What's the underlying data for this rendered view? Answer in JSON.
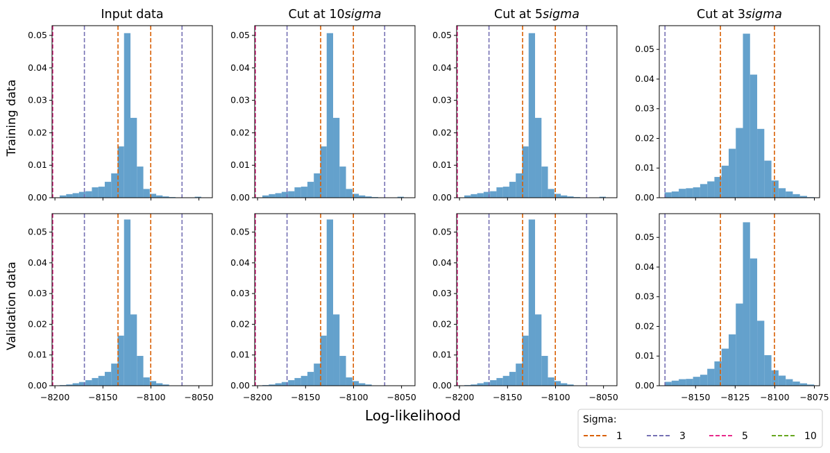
{
  "figure": {
    "xlabel": "Log-likelihood",
    "row_labels": [
      "Training data",
      "Validation data"
    ],
    "col_titles": [
      {
        "text": "Input data",
        "italic": ""
      },
      {
        "text": "Cut at 10",
        "italic": "sigma"
      },
      {
        "text": "Cut at 5",
        "italic": "sigma"
      },
      {
        "text": "Cut at 3",
        "italic": "sigma"
      }
    ],
    "legend": {
      "title": "Sigma:",
      "entries": [
        {
          "label": "1",
          "color": "#d95f02"
        },
        {
          "label": "3",
          "color": "#7570b3"
        },
        {
          "label": "5",
          "color": "#e7298a"
        },
        {
          "label": "10",
          "color": "#66a61e"
        }
      ]
    },
    "bar_color": "#64a1cc",
    "line_colors": {
      "1": "#d95f02",
      "3": "#7570b3",
      "5": "#e7298a",
      "10": "#66a61e"
    }
  },
  "chart_data": [
    {
      "type": "bar",
      "row": 0,
      "col": 0,
      "xlim": [
        -8203,
        -8036
      ],
      "ylim": [
        0,
        0.053
      ],
      "xticks": [
        -8200,
        -8150,
        -8100,
        -8050
      ],
      "yticks": [
        0.0,
        0.01,
        0.02,
        0.03,
        0.04,
        0.05
      ],
      "bin_edges": [
        -8195,
        -8188.3,
        -8181.6,
        -8174.9,
        -8168.2,
        -8161.5,
        -8154.8,
        -8148.1,
        -8141.4,
        -8134.7,
        -8128,
        -8121.3,
        -8114.6,
        -8107.9,
        -8101.2,
        -8094.5,
        -8087.8,
        -8081.1,
        -8074.4,
        -8067.7,
        -8061,
        -8054.3,
        -8047.6,
        -8040.9
      ],
      "values": [
        0.0007,
        0.0011,
        0.0014,
        0.0018,
        0.002,
        0.0032,
        0.0034,
        0.0049,
        0.0075,
        0.0158,
        0.0507,
        0.0246,
        0.0096,
        0.0027,
        0.0012,
        0.0007,
        0.0004,
        0.0002,
        0.0,
        0.0,
        0.0,
        0.0003,
        0.0
      ],
      "sigma_lines": [
        {
          "sigma": "1",
          "x": [
            -8134.3,
            -8100.2
          ]
        },
        {
          "sigma": "3",
          "x": [
            -8169.3,
            -8067.6
          ]
        },
        {
          "sigma": "5",
          "x": [
            -8202.3
          ]
        },
        {
          "sigma": "10",
          "x": [
            -8202.5
          ]
        }
      ]
    },
    {
      "type": "bar",
      "row": 0,
      "col": 1,
      "xlim": [
        -8203,
        -8036
      ],
      "ylim": [
        0,
        0.053
      ],
      "xticks": [
        -8200,
        -8150,
        -8100,
        -8050
      ],
      "yticks": [
        0.0,
        0.01,
        0.02,
        0.03,
        0.04,
        0.05
      ],
      "bin_edges": [
        -8195,
        -8188.3,
        -8181.6,
        -8174.9,
        -8168.2,
        -8161.5,
        -8154.8,
        -8148.1,
        -8141.4,
        -8134.7,
        -8128,
        -8121.3,
        -8114.6,
        -8107.9,
        -8101.2,
        -8094.5,
        -8087.8,
        -8081.1,
        -8074.4,
        -8067.7,
        -8061,
        -8054.3,
        -8047.6,
        -8040.9
      ],
      "values": [
        0.0007,
        0.0011,
        0.0014,
        0.0018,
        0.002,
        0.0032,
        0.0034,
        0.0049,
        0.0075,
        0.0158,
        0.0507,
        0.0246,
        0.0096,
        0.0027,
        0.0012,
        0.0007,
        0.0004,
        0.0002,
        0.0,
        0.0,
        0.0,
        0.0003,
        0.0
      ],
      "sigma_lines": [
        {
          "sigma": "1",
          "x": [
            -8134.3,
            -8100.2
          ]
        },
        {
          "sigma": "3",
          "x": [
            -8169.3,
            -8067.6
          ]
        },
        {
          "sigma": "5",
          "x": [
            -8202.3
          ]
        },
        {
          "sigma": "10",
          "x": [
            -8202.5
          ]
        }
      ]
    },
    {
      "type": "bar",
      "row": 0,
      "col": 2,
      "xlim": [
        -8203,
        -8036
      ],
      "ylim": [
        0,
        0.053
      ],
      "xticks": [
        -8200,
        -8150,
        -8100,
        -8050
      ],
      "yticks": [
        0.0,
        0.01,
        0.02,
        0.03,
        0.04,
        0.05
      ],
      "bin_edges": [
        -8195,
        -8188.3,
        -8181.6,
        -8174.9,
        -8168.2,
        -8161.5,
        -8154.8,
        -8148.1,
        -8141.4,
        -8134.7,
        -8128,
        -8121.3,
        -8114.6,
        -8107.9,
        -8101.2,
        -8094.5,
        -8087.8,
        -8081.1,
        -8074.4,
        -8067.7,
        -8061,
        -8054.3,
        -8047.6,
        -8040.9
      ],
      "values": [
        0.0007,
        0.0011,
        0.0014,
        0.0018,
        0.002,
        0.0032,
        0.0034,
        0.0049,
        0.0075,
        0.0158,
        0.0507,
        0.0246,
        0.0096,
        0.0027,
        0.0012,
        0.0007,
        0.0004,
        0.0002,
        0.0,
        0.0,
        0.0,
        0.0003,
        0.0
      ],
      "sigma_lines": [
        {
          "sigma": "1",
          "x": [
            -8134.3,
            -8100.2
          ]
        },
        {
          "sigma": "3",
          "x": [
            -8169.3,
            -8067.6
          ]
        },
        {
          "sigma": "5",
          "x": [
            -8202.3
          ]
        },
        {
          "sigma": "10",
          "x": [
            -8202.5
          ]
        }
      ]
    },
    {
      "type": "bar",
      "row": 0,
      "col": 3,
      "xlim": [
        -8172.9,
        -8071.7
      ],
      "ylim": [
        0,
        0.058
      ],
      "xticks": [
        -8150,
        -8125,
        -8100,
        -8075
      ],
      "yticks": [
        0.0,
        0.01,
        0.02,
        0.03,
        0.04,
        0.05
      ],
      "bin_edges": [
        -8169.6,
        -8165.1,
        -8160.6,
        -8156.1,
        -8151.6,
        -8147.1,
        -8142.6,
        -8138.1,
        -8133.6,
        -8129.1,
        -8124.6,
        -8120.1,
        -8115.6,
        -8111.1,
        -8106.6,
        -8102.1,
        -8097.6,
        -8093.1,
        -8088.6,
        -8084.1,
        -8079.6,
        -8075.1
      ],
      "values": [
        0.0018,
        0.0021,
        0.003,
        0.0032,
        0.0035,
        0.0046,
        0.0055,
        0.007,
        0.0108,
        0.0165,
        0.0235,
        0.0553,
        0.0415,
        0.0232,
        0.0125,
        0.0058,
        0.0032,
        0.0021,
        0.0012,
        0.0006,
        0.0002
      ],
      "sigma_lines": [
        {
          "sigma": "1",
          "x": [
            -8134.3,
            -8100.2
          ]
        },
        {
          "sigma": "3",
          "x": [
            -8169.3,
            -8071.5
          ]
        }
      ]
    },
    {
      "type": "bar",
      "row": 1,
      "col": 0,
      "xlim": [
        -8203,
        -8036
      ],
      "ylim": [
        0,
        0.056
      ],
      "xticks": [
        -8200,
        -8150,
        -8100,
        -8050
      ],
      "yticks": [
        0.0,
        0.01,
        0.02,
        0.03,
        0.04,
        0.05
      ],
      "bin_edges": [
        -8195,
        -8188.3,
        -8181.6,
        -8174.9,
        -8168.2,
        -8161.5,
        -8154.8,
        -8148.1,
        -8141.4,
        -8134.7,
        -8128,
        -8121.3,
        -8114.6,
        -8107.9,
        -8101.2,
        -8094.5,
        -8087.8,
        -8081.1,
        -8074.4,
        -8067.7,
        -8061,
        -8054.3,
        -8047.6,
        -8040.9
      ],
      "values": [
        0.0002,
        0.0004,
        0.0008,
        0.0012,
        0.0018,
        0.0025,
        0.0032,
        0.0045,
        0.0072,
        0.0163,
        0.0541,
        0.0232,
        0.0097,
        0.0027,
        0.0015,
        0.0008,
        0.0004,
        0.0001,
        0.0,
        0.0,
        0.0,
        0.0,
        0.0
      ],
      "sigma_lines": [
        {
          "sigma": "1",
          "x": [
            -8134.3,
            -8100.2
          ]
        },
        {
          "sigma": "3",
          "x": [
            -8169.3,
            -8067.6
          ]
        },
        {
          "sigma": "5",
          "x": [
            -8202.3
          ]
        },
        {
          "sigma": "10",
          "x": [
            -8202.5
          ]
        }
      ]
    },
    {
      "type": "bar",
      "row": 1,
      "col": 1,
      "xlim": [
        -8203,
        -8036
      ],
      "ylim": [
        0,
        0.056
      ],
      "xticks": [
        -8200,
        -8150,
        -8100,
        -8050
      ],
      "yticks": [
        0.0,
        0.01,
        0.02,
        0.03,
        0.04,
        0.05
      ],
      "bin_edges": [
        -8195,
        -8188.3,
        -8181.6,
        -8174.9,
        -8168.2,
        -8161.5,
        -8154.8,
        -8148.1,
        -8141.4,
        -8134.7,
        -8128,
        -8121.3,
        -8114.6,
        -8107.9,
        -8101.2,
        -8094.5,
        -8087.8,
        -8081.1,
        -8074.4,
        -8067.7,
        -8061,
        -8054.3,
        -8047.6,
        -8040.9
      ],
      "values": [
        0.0002,
        0.0004,
        0.0008,
        0.0012,
        0.0018,
        0.0025,
        0.0032,
        0.0045,
        0.0072,
        0.0163,
        0.0541,
        0.0232,
        0.0097,
        0.0027,
        0.0015,
        0.0008,
        0.0004,
        0.0001,
        0.0,
        0.0,
        0.0,
        0.0,
        0.0
      ],
      "sigma_lines": [
        {
          "sigma": "1",
          "x": [
            -8134.3,
            -8100.2
          ]
        },
        {
          "sigma": "3",
          "x": [
            -8169.3,
            -8067.6
          ]
        },
        {
          "sigma": "5",
          "x": [
            -8202.3
          ]
        },
        {
          "sigma": "10",
          "x": [
            -8202.5
          ]
        }
      ]
    },
    {
      "type": "bar",
      "row": 1,
      "col": 2,
      "xlim": [
        -8203,
        -8036
      ],
      "ylim": [
        0,
        0.056
      ],
      "xticks": [
        -8200,
        -8150,
        -8100,
        -8050
      ],
      "yticks": [
        0.0,
        0.01,
        0.02,
        0.03,
        0.04,
        0.05
      ],
      "bin_edges": [
        -8195,
        -8188.3,
        -8181.6,
        -8174.9,
        -8168.2,
        -8161.5,
        -8154.8,
        -8148.1,
        -8141.4,
        -8134.7,
        -8128,
        -8121.3,
        -8114.6,
        -8107.9,
        -8101.2,
        -8094.5,
        -8087.8,
        -8081.1,
        -8074.4,
        -8067.7,
        -8061,
        -8054.3,
        -8047.6,
        -8040.9
      ],
      "values": [
        0.0002,
        0.0004,
        0.0008,
        0.0012,
        0.0018,
        0.0025,
        0.0032,
        0.0045,
        0.0072,
        0.0163,
        0.0541,
        0.0232,
        0.0097,
        0.0027,
        0.0015,
        0.0008,
        0.0004,
        0.0001,
        0.0,
        0.0,
        0.0,
        0.0,
        0.0
      ],
      "sigma_lines": [
        {
          "sigma": "1",
          "x": [
            -8134.3,
            -8100.2
          ]
        },
        {
          "sigma": "3",
          "x": [
            -8169.3,
            -8067.6
          ]
        },
        {
          "sigma": "5",
          "x": [
            -8202.3
          ]
        },
        {
          "sigma": "10",
          "x": [
            -8202.5
          ]
        }
      ]
    },
    {
      "type": "bar",
      "row": 1,
      "col": 3,
      "xlim": [
        -8172.9,
        -8071.7
      ],
      "ylim": [
        0,
        0.058
      ],
      "xticks": [
        -8150,
        -8125,
        -8100,
        -8075
      ],
      "yticks": [
        0.0,
        0.01,
        0.02,
        0.03,
        0.04,
        0.05
      ],
      "bin_edges": [
        -8169.6,
        -8165.1,
        -8160.6,
        -8156.1,
        -8151.6,
        -8147.1,
        -8142.6,
        -8138.1,
        -8133.6,
        -8129.1,
        -8124.6,
        -8120.1,
        -8115.6,
        -8111.1,
        -8106.6,
        -8102.1,
        -8097.6,
        -8093.1,
        -8088.6,
        -8084.1,
        -8079.6,
        -8075.1
      ],
      "values": [
        0.0013,
        0.0017,
        0.0022,
        0.0023,
        0.003,
        0.0037,
        0.0057,
        0.0082,
        0.0125,
        0.0173,
        0.0277,
        0.0551,
        0.0429,
        0.0219,
        0.0103,
        0.0052,
        0.0034,
        0.0022,
        0.0014,
        0.0008,
        0.0004
      ],
      "sigma_lines": [
        {
          "sigma": "1",
          "x": [
            -8134.3,
            -8100.2
          ]
        },
        {
          "sigma": "3",
          "x": [
            -8169.3,
            -8071.5
          ]
        }
      ]
    }
  ]
}
